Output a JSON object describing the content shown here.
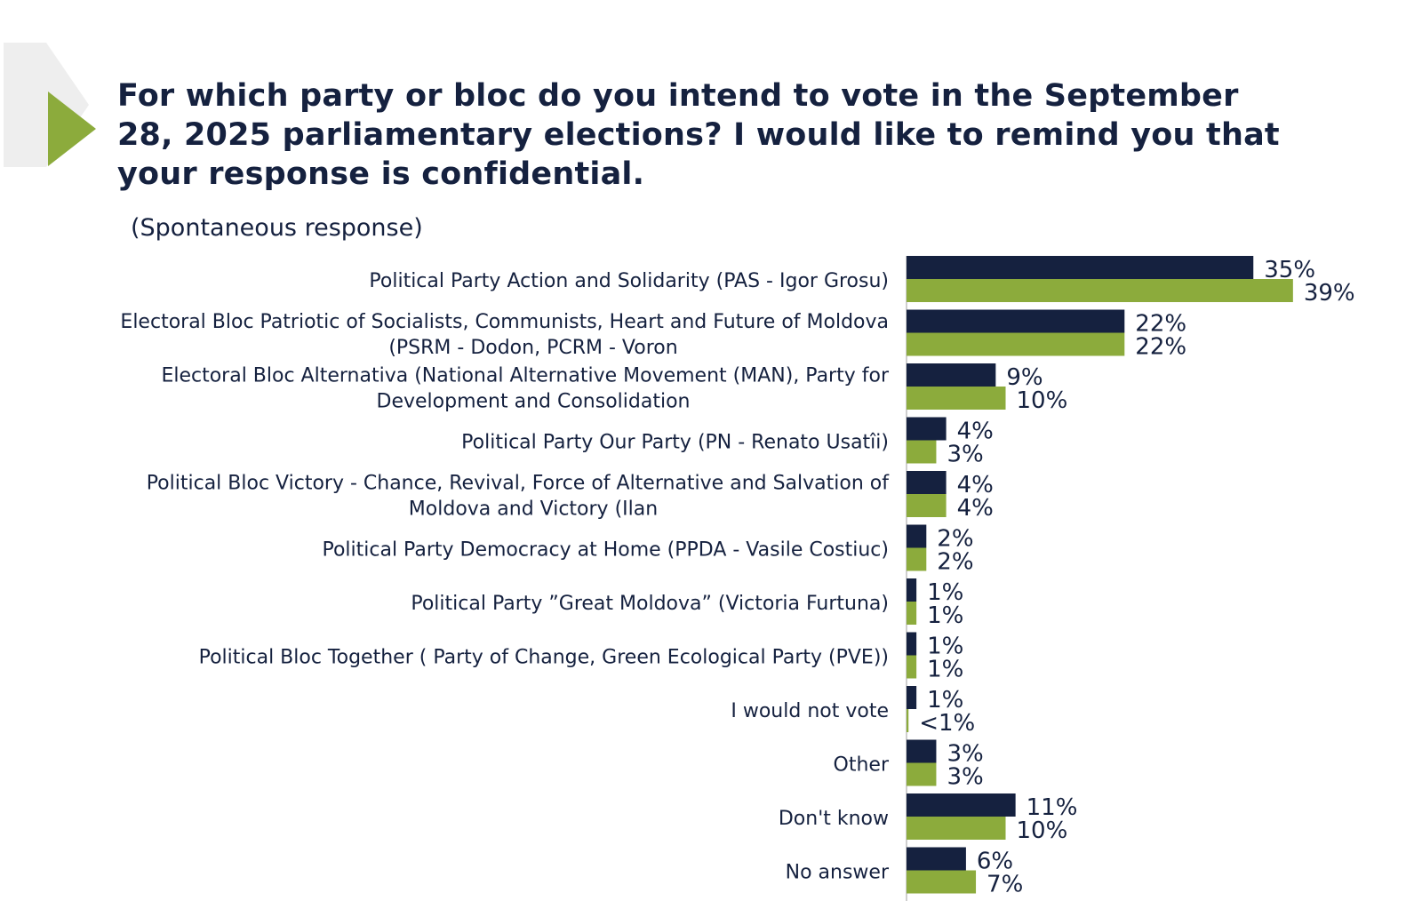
{
  "page": {
    "title": "For which party or bloc do you intend to vote in the September 28, 2025 parliamentary elections? I would like to remind you that your response is confidential.",
    "subtitle": "(Spontaneous response)"
  },
  "colors": {
    "accent_green": "#8cab3c",
    "series_dark": "#15213f",
    "series_green": "#8cab3c",
    "decor_grey": "#eeeeee"
  },
  "chart_data": {
    "type": "bar",
    "orientation": "horizontal",
    "categories": [
      [
        "Political Party Action and Solidarity (PAS - Igor Grosu)"
      ],
      [
        "Electoral Bloc Patriotic of Socialists, Communists, Heart and Future of Moldova",
        "(PSRM - Dodon, PCRM - Voron"
      ],
      [
        "Electoral Bloc Alternativa (National Alternative Movement (MAN), Party for",
        "Development and Consolidation"
      ],
      [
        "Political Party Our Party (PN - Renato Usatîi)"
      ],
      [
        "Political Bloc Victory - Chance, Revival, Force of Alternative and Salvation of",
        "Moldova and Victory (Ilan"
      ],
      [
        "Political Party Democracy at Home (PPDA - Vasile Costiuc)"
      ],
      [
        "Political Party ”Great Moldova” (Victoria Furtuna)"
      ],
      [
        "Political Bloc Together ( Party of Change, Green Ecological Party (PVE))"
      ],
      [
        "I would not vote"
      ],
      [
        "Other"
      ],
      [
        "Don't know"
      ],
      [
        "No answer"
      ]
    ],
    "series": [
      {
        "values": [
          35,
          22,
          9,
          4,
          4,
          2,
          1,
          1,
          1,
          3,
          11,
          6
        ],
        "labels": [
          "35%",
          "22%",
          "9%",
          "4%",
          "4%",
          "2%",
          "1%",
          "1%",
          "1%",
          "3%",
          "11%",
          "6%"
        ]
      },
      {
        "values": [
          39,
          22,
          10,
          3,
          4,
          2,
          1,
          1,
          0.2,
          3,
          10,
          7
        ],
        "labels": [
          "39%",
          "22%",
          "10%",
          "3%",
          "4%",
          "2%",
          "1%",
          "1%",
          "<1%",
          "3%",
          "10%",
          "7%"
        ]
      }
    ],
    "xlim": [
      0,
      50
    ],
    "grid": false,
    "legend": "none"
  }
}
